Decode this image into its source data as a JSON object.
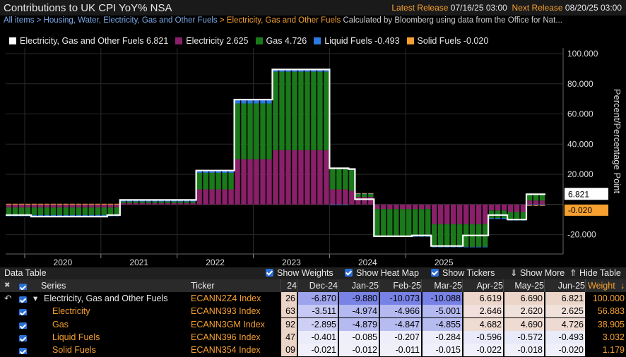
{
  "header": {
    "title": "Contributions to UK CPI YoY% NSA",
    "latest_label": "Latest Release",
    "latest_value": "07/16/25 03:00",
    "next_label": "Next Release",
    "next_value": "08/20/25 03:00"
  },
  "breadcrumb": {
    "items": [
      "All items",
      "Housing, Water, Electricity, Gas and Other Fuels"
    ],
    "active": "Electricity, Gas and Other Fuels",
    "separator": ">",
    "note": "Calculated by Bloomberg using data from the Office for Nat..."
  },
  "legend": [
    {
      "label": "Electricity, Gas and Other Fuels 6.821",
      "color": "#ffffff"
    },
    {
      "label": "Electricity 2.625",
      "color": "#8a1f6a"
    },
    {
      "label": "Gas 4.726",
      "color": "#1a7a1a"
    },
    {
      "label": "Liquid Fuels -0.493",
      "color": "#2a7ae0"
    },
    {
      "label": "Solid Fuels -0.020",
      "color": "#f5a030"
    }
  ],
  "chart_data": {
    "type": "bar",
    "stacked": true,
    "x_start": "2019-10",
    "x_ticks": [
      "2020",
      "2021",
      "2022",
      "2023",
      "2024",
      "2025"
    ],
    "ylabel": "Percent/Percentage Point",
    "ylim": [
      -30,
      100
    ],
    "y_ticks": [
      "100.000",
      "80.000",
      "60.000",
      "40.000",
      "20.000",
      "-20.000"
    ],
    "grid": true,
    "last_value_labels": [
      "6.821",
      "-0.020"
    ],
    "series": [
      {
        "name": "Electricity",
        "color": "#8a1f6a",
        "values": [
          -2,
          -2,
          -2,
          -2,
          -2,
          -2,
          -2,
          -2,
          -2,
          -2,
          -2,
          -2,
          -2,
          -2,
          -2,
          -2,
          -2,
          -2,
          1,
          1,
          1,
          1,
          1,
          1,
          1,
          1,
          1,
          1,
          1,
          1,
          10,
          10,
          10,
          10,
          10,
          10,
          30,
          30,
          30,
          30,
          30,
          30,
          36,
          36,
          36,
          36,
          36,
          36,
          36,
          36,
          36,
          10,
          10,
          10,
          9,
          5,
          5,
          5,
          -3,
          -3,
          -3,
          -3,
          -3,
          -3,
          -3,
          -3,
          -3,
          -13,
          -13,
          -13,
          -13,
          -13,
          -13,
          -13,
          -13,
          -13,
          -4,
          -4,
          -4,
          -5,
          -5,
          -5,
          2.6,
          2.6,
          2.6
        ]
      },
      {
        "name": "Gas",
        "color": "#1a7a1a",
        "values": [
          -5,
          -5,
          -5,
          -5,
          -5,
          -5,
          -5,
          -5,
          -5,
          -5,
          -5,
          -5,
          -5,
          -5,
          -5,
          -5,
          -5,
          -5,
          1,
          1,
          1,
          1,
          1,
          1,
          1,
          1,
          1,
          1,
          1,
          1,
          11,
          11,
          11,
          11,
          11,
          11,
          37,
          37,
          37,
          37,
          37,
          37,
          52,
          52,
          52,
          52,
          52,
          52,
          52,
          52,
          52,
          14,
          14,
          14,
          14,
          2,
          2,
          2,
          -18,
          -18,
          -18,
          -18,
          -18,
          -18,
          -18,
          -18,
          -18,
          -15,
          -15,
          -15,
          -15,
          -15,
          -15,
          -15,
          -15,
          -15,
          -5,
          -5,
          -5,
          -5,
          -5,
          -5,
          4.7,
          4.7,
          4.7
        ]
      },
      {
        "name": "Liquid Fuels",
        "color": "#2a7ae0",
        "values": [
          -0.8,
          -0.8,
          -0.8,
          -0.8,
          -0.8,
          -0.8,
          -0.8,
          -0.8,
          -0.8,
          -0.8,
          -0.8,
          -0.8,
          -0.8,
          -0.8,
          -0.8,
          -0.8,
          -0.8,
          -0.8,
          0.5,
          0.5,
          0.5,
          0.5,
          0.5,
          0.5,
          0.5,
          0.5,
          0.5,
          0.5,
          0.5,
          0.5,
          1.2,
          1.2,
          1.2,
          1.2,
          1.2,
          1.2,
          2.5,
          2.5,
          2.5,
          2.5,
          2.5,
          2.5,
          1.4,
          1.4,
          1.4,
          1.4,
          1.4,
          1.4,
          1.4,
          1.4,
          1.4,
          -0.4,
          -0.4,
          -0.4,
          0.2,
          0.2,
          0.2,
          0.2,
          -0.3,
          -0.3,
          -0.3,
          -0.3,
          -0.3,
          -0.3,
          -0.3,
          -0.3,
          -0.3,
          -0.3,
          -0.3,
          -0.3,
          -0.3,
          -0.3,
          -0.3,
          -0.3,
          -0.3,
          -0.3,
          -0.6,
          -0.6,
          -0.6,
          -0.6,
          -0.6,
          -0.6,
          -0.5,
          -0.5,
          -0.5
        ]
      },
      {
        "name": "Solid Fuels",
        "color": "#f5a030",
        "values": [
          0.5,
          0.5,
          0.5,
          0.5,
          0.5,
          0.5,
          0.5,
          0.5,
          0.5,
          0.5,
          0.5,
          0.5,
          0.5,
          0.5,
          0.5,
          0.5,
          0.5,
          0.5,
          0.5,
          0.5,
          0.5,
          0.5,
          0.5,
          0.5,
          0.5,
          0.5,
          0.5,
          0.5,
          0.5,
          0.5,
          0.5,
          0.5,
          0.5,
          0.5,
          0.5,
          0.5,
          0.5,
          0.5,
          0.5,
          0.5,
          0.5,
          0.5,
          0.5,
          0.5,
          0.5,
          0.5,
          0.5,
          0.5,
          0.5,
          0.5,
          0.5,
          0.5,
          0.5,
          0.5,
          0.3,
          0.3,
          0.3,
          0.3,
          0,
          0,
          0,
          0,
          0,
          0,
          0,
          0,
          0,
          0,
          0,
          0,
          0,
          0,
          0,
          0,
          0,
          0,
          0,
          0,
          0,
          0,
          0,
          0,
          -0.02,
          -0.02,
          -0.02
        ]
      },
      {
        "name": "Electricity, Gas and Other Fuels",
        "type": "line",
        "color": "#ffffff",
        "values": [
          -7,
          -7,
          -7,
          -7,
          -8,
          -8,
          -8,
          -8,
          -8,
          -8,
          -8,
          -8,
          -8,
          -8,
          -8,
          -8,
          -7,
          -7,
          3,
          3,
          3,
          3,
          3,
          3,
          3,
          3,
          3,
          3,
          3,
          3,
          22.5,
          22.5,
          22.5,
          22.5,
          22.5,
          22.5,
          69.5,
          69.5,
          69.5,
          69.5,
          69.5,
          69.5,
          89.5,
          89.5,
          89.5,
          89.5,
          89.5,
          89.5,
          89.5,
          89.5,
          89.5,
          24,
          24,
          24,
          23.5,
          3.5,
          3.5,
          3.5,
          -21,
          -21,
          -21,
          -21,
          -21,
          -21,
          -20.5,
          -20.5,
          -20.5,
          -27.5,
          -27.5,
          -27.5,
          -27.5,
          -27.5,
          -20.5,
          -20.5,
          -20.5,
          -20.5,
          -7,
          -7,
          -7,
          -10,
          -10,
          -10,
          6.821,
          6.821,
          6.821
        ]
      }
    ]
  },
  "data_table": {
    "title": "Data Table",
    "options": [
      "Show Weights",
      "Show Heat Map",
      "Show Tickers",
      "Show More",
      "Hide Table"
    ],
    "columns": [
      "Series",
      "Ticker",
      "24",
      "Dec-24",
      "Jan-25",
      "Feb-25",
      "Mar-25",
      "Apr-25",
      "May-25",
      "Jun-25",
      "Weight"
    ],
    "weight_sort": "↓",
    "rows": [
      {
        "series": "Electricity, Gas and Other Fuels",
        "ticker": "ECANN2Z4 Index",
        "values": [
          "26",
          "-6.870",
          "-9.880",
          "-10.073",
          "-10.088",
          "6.619",
          "6.690",
          "6.821"
        ],
        "weight": "100.000"
      },
      {
        "series": "Electricity",
        "ticker": "ECANN393 Index",
        "values": [
          "63",
          "-3.511",
          "-4.974",
          "-4.966",
          "-5.001",
          "2.646",
          "2.620",
          "2.625"
        ],
        "weight": "56.883"
      },
      {
        "series": "Gas",
        "ticker": "ECANN3GM Index",
        "values": [
          "92",
          "-2.895",
          "-4.879",
          "-4.847",
          "-4.855",
          "4.682",
          "4.690",
          "4.726"
        ],
        "weight": "38.905"
      },
      {
        "series": "Liquid Fuels",
        "ticker": "ECANN396 Index",
        "values": [
          "47",
          "-0.401",
          "-0.085",
          "-0.207",
          "-0.284",
          "-0.596",
          "-0.572",
          "-0.493"
        ],
        "weight": "3.032"
      },
      {
        "series": "Solid Fuels",
        "ticker": "ECANN354 Index",
        "values": [
          "09",
          "-0.021",
          "-0.012",
          "-0.011",
          "-0.015",
          "-0.022",
          "-0.018",
          "-0.020"
        ],
        "weight": "1.179"
      }
    ]
  }
}
